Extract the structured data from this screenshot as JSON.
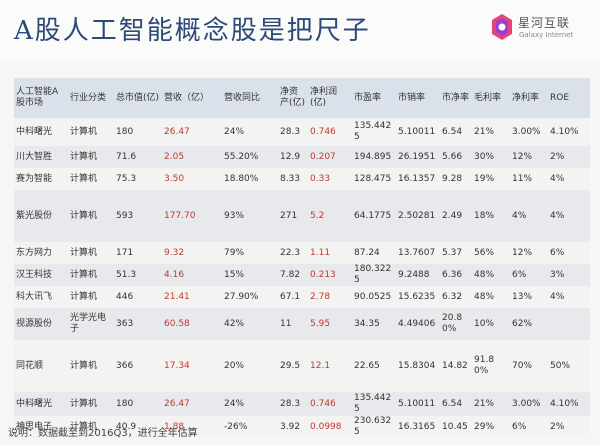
{
  "page": {
    "title": "A股人工智能概念股是把尺子",
    "logo_cn": "星河互联",
    "logo_en": "Galaxy Internet",
    "note": "说明：数据截至到2016Q3，进行全年估算"
  },
  "table": {
    "headers": [
      "人工智能A股市场",
      "行业分类",
      "总市值(亿)",
      "营收（亿）",
      "营收同比",
      "净资产(亿)",
      "净利润(亿)",
      "市盈率",
      "市销率",
      "市净率",
      "毛利率",
      "净利率",
      "ROE"
    ],
    "rows": [
      [
        "中科曙光",
        "计算机",
        "180",
        "26.47",
        "24%",
        "28.3",
        "0.746",
        "135.4425",
        "5.10011",
        "6.54",
        "21%",
        "3.00%",
        "4.10%"
      ],
      [
        "川大智胜",
        "计算机",
        "71.6",
        "2.05",
        "55.20%",
        "12.9",
        "0.207",
        "194.895",
        "26.1951",
        "5.66",
        "30%",
        "12%",
        "2%"
      ],
      [
        "赛为智能",
        "计算机",
        "75.3",
        "3.50",
        "18.80%",
        "8.33",
        "0.33",
        "128.475",
        "16.1357",
        "9.28",
        "19%",
        "11%",
        "4%"
      ],
      [
        "紫光股份",
        "计算机",
        "593",
        "177.70",
        "93%",
        "271",
        "5.2",
        "64.1775",
        "2.50281",
        "2.49",
        "18%",
        "4%",
        "4%"
      ],
      [
        "东方网力",
        "计算机",
        "171",
        "9.32",
        "79%",
        "22.3",
        "1.11",
        "87.24",
        "13.7607",
        "5.37",
        "56%",
        "12%",
        "6%"
      ],
      [
        "汉王科技",
        "计算机",
        "51.3",
        "4.16",
        "15%",
        "7.82",
        "0.213",
        "180.3225",
        "9.2488",
        "6.36",
        "48%",
        "6%",
        "3%"
      ],
      [
        "科大讯飞",
        "计算机",
        "446",
        "21.41",
        "27.90%",
        "67.1",
        "2.78",
        "90.0525",
        "15.6235",
        "6.32",
        "48%",
        "13%",
        "4%"
      ],
      [
        "视源股份",
        "光学光电子",
        "363",
        "60.58",
        "42%",
        "11",
        "5.95",
        "34.35",
        "4.49406",
        "20.80%",
        "10%",
        "62%",
        ""
      ],
      [
        "同花顺",
        "计算机",
        "366",
        "17.34",
        "20%",
        "29.5",
        "12.1",
        "22.65",
        "15.8304",
        "14.82",
        "91.80%",
        "70%",
        "50%"
      ],
      [
        "中科曙光",
        "计算机",
        "180",
        "26.47",
        "24%",
        "28.3",
        "0.746",
        "135.4425",
        "5.10011",
        "6.54",
        "21%",
        "3.00%",
        "4.10%"
      ],
      [
        "神思电子",
        "计算机",
        "40.9",
        "1.88",
        "-26%",
        "3.92",
        "0.0998",
        "230.6325",
        "16.3165",
        "10.45",
        "29%",
        "6%",
        "2%"
      ]
    ]
  },
  "colors": {
    "title": "#2b4a7a",
    "accent_red": "#c0392b",
    "header_bg": "#dbe1ea"
  }
}
